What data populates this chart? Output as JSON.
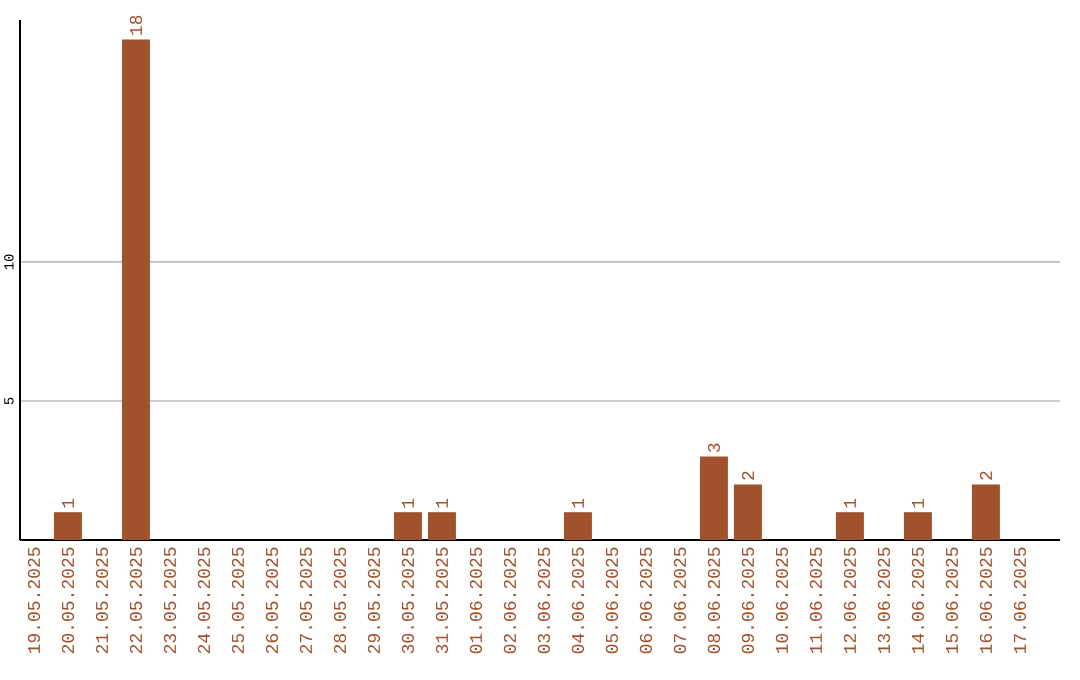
{
  "chart_data": {
    "type": "bar",
    "categories": [
      "19.05.2025",
      "20.05.2025",
      "21.05.2025",
      "22.05.2025",
      "23.05.2025",
      "24.05.2025",
      "25.05.2025",
      "26.05.2025",
      "27.05.2025",
      "28.05.2025",
      "29.05.2025",
      "30.05.2025",
      "31.05.2025",
      "01.06.2025",
      "02.06.2025",
      "03.06.2025",
      "04.06.2025",
      "05.06.2025",
      "06.06.2025",
      "07.06.2025",
      "08.06.2025",
      "09.06.2025",
      "10.06.2025",
      "11.06.2025",
      "12.06.2025",
      "13.06.2025",
      "14.06.2025",
      "15.06.2025",
      "16.06.2025",
      "17.06.2025"
    ],
    "values": [
      0,
      1,
      0,
      18,
      0,
      0,
      0,
      0,
      0,
      0,
      0,
      1,
      1,
      0,
      0,
      0,
      1,
      0,
      0,
      0,
      3,
      2,
      0,
      0,
      1,
      0,
      1,
      0,
      2,
      0
    ],
    "value_labels": [
      null,
      "1",
      null,
      "18",
      null,
      null,
      null,
      null,
      null,
      null,
      null,
      "1",
      "1",
      null,
      null,
      null,
      "1",
      null,
      null,
      null,
      "3",
      "2",
      null,
      null,
      "1",
      null,
      "1",
      null,
      "2",
      null
    ],
    "color": "#a0522d",
    "ylim": [
      0,
      18.7
    ],
    "yticks": [
      5,
      10
    ],
    "grid": "y"
  }
}
